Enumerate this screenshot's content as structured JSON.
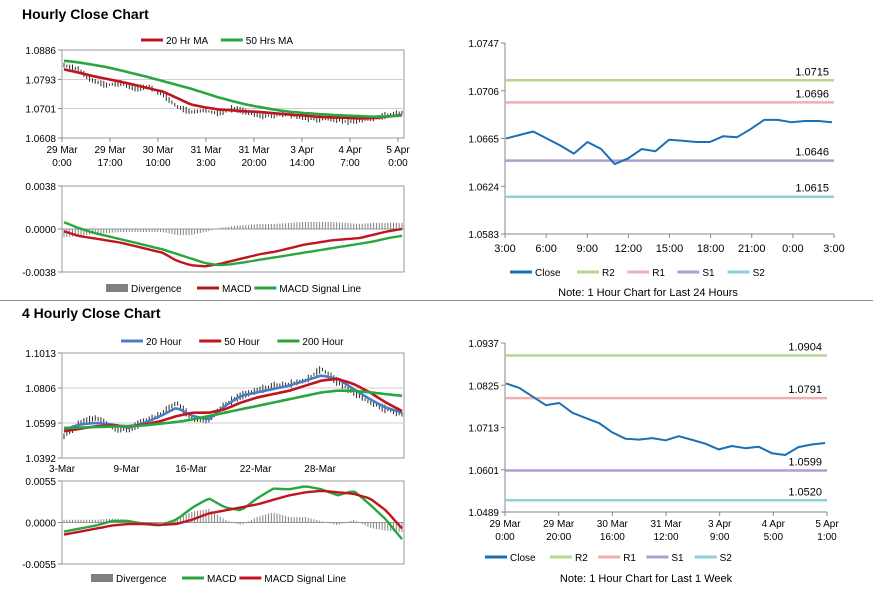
{
  "sections": [
    {
      "title": "Hourly Close Chart"
    },
    {
      "title": "4 Hourly Close Chart"
    }
  ],
  "chart_data": [
    {
      "type": "line",
      "panel": "hourly-price",
      "legend": [
        "20 Hr MA",
        "50 Hrs MA"
      ],
      "legend_position": "top",
      "colors": {
        "20 Hr MA": "#c0141e",
        "50 Hrs MA": "#2aa640",
        "price": "#2b2b2b"
      },
      "x_ticks": [
        "29 Mar|0:00",
        "29 Mar|17:00",
        "30 Mar|10:00",
        "31 Mar|3:00",
        "31 Mar|20:00",
        "3 Apr|14:00",
        "4 Apr|7:00",
        "5 Apr|0:00"
      ],
      "y_ticks": [
        "1.0886",
        "1.0793",
        "1.0701",
        "1.0608"
      ],
      "ylim": [
        1.0608,
        1.0886
      ],
      "grid": true,
      "series": [
        {
          "name": "20 Hr MA",
          "values": [
            1.0825,
            1.0815,
            1.0804,
            1.0795,
            1.0786,
            1.0776,
            1.0765,
            1.0755,
            1.0735,
            1.0714,
            1.0705,
            1.0698,
            1.0695,
            1.0692,
            1.069,
            1.0686,
            1.0682,
            1.0679,
            1.0675,
            1.0673,
            1.0672,
            1.067,
            1.0671,
            1.0676,
            1.0681
          ]
        },
        {
          "name": "50 Hrs MA",
          "values": [
            1.0852,
            1.0847,
            1.084,
            1.0832,
            1.0822,
            1.0811,
            1.08,
            1.0788,
            1.0776,
            1.0764,
            1.075,
            1.0736,
            1.0724,
            1.0713,
            1.0705,
            1.0697,
            1.0691,
            1.0687,
            1.0684,
            1.0681,
            1.0679,
            1.0677,
            1.0675,
            1.0676,
            1.0679
          ]
        },
        {
          "name": "Close",
          "values": [
            1.0838,
            1.0825,
            1.079,
            1.0775,
            1.0782,
            1.0765,
            1.077,
            1.0745,
            1.0708,
            1.069,
            1.0695,
            1.0685,
            1.0702,
            1.069,
            1.0678,
            1.068,
            1.0683,
            1.067,
            1.0667,
            1.0671,
            1.066,
            1.0664,
            1.0668,
            1.0682,
            1.0688
          ]
        }
      ]
    },
    {
      "type": "bar",
      "panel": "hourly-macd",
      "legend": [
        "Divergence",
        "MACD",
        "MACD Signal Line"
      ],
      "legend_position": "bottom",
      "colors": {
        "Divergence": "#808080",
        "MACD": "#c0141e",
        "MACD Signal Line": "#2aa640"
      },
      "y_ticks": [
        "0.0038",
        "0.0000",
        "-0.0038"
      ],
      "ylim": [
        -0.0038,
        0.0038
      ],
      "series": [
        {
          "name": "MACD",
          "values": [
            -0.0002,
            -0.0006,
            -0.0008,
            -0.001,
            -0.0012,
            -0.0015,
            -0.0018,
            -0.0021,
            -0.0028,
            -0.0032,
            -0.0033,
            -0.0031,
            -0.0028,
            -0.0025,
            -0.0022,
            -0.002,
            -0.0017,
            -0.0014,
            -0.0012,
            -0.001,
            -0.0009,
            -0.0008,
            -0.0005,
            -0.0002,
            0.0
          ]
        },
        {
          "name": "MACD Signal Line",
          "values": [
            0.0006,
            0.0001,
            -0.0003,
            -0.0006,
            -0.0009,
            -0.0012,
            -0.0015,
            -0.0018,
            -0.0022,
            -0.0026,
            -0.003,
            -0.0032,
            -0.0031,
            -0.0029,
            -0.0027,
            -0.0025,
            -0.0023,
            -0.0021,
            -0.0019,
            -0.0017,
            -0.0015,
            -0.0013,
            -0.0011,
            -0.0008,
            -0.0006
          ]
        }
      ]
    },
    {
      "type": "line",
      "panel": "hourly-levels",
      "legend": [
        "Close",
        "R2",
        "R1",
        "S1",
        "S2"
      ],
      "legend_position": "bottom",
      "note": "Note: 1 Hour Chart for Last 24 Hours",
      "colors": {
        "Close": "#1a6fb5",
        "R2": "#b7d68f",
        "R1": "#eeb1b1",
        "S1": "#b39ccf",
        "S2": "#8fd0dc"
      },
      "categories": [
        "3:00",
        "6:00",
        "9:00",
        "12:00",
        "15:00",
        "18:00",
        "21:00",
        "0:00",
        "3:00"
      ],
      "y_ticks": [
        "1.0747",
        "1.0706",
        "1.0665",
        "1.0624",
        "1.0583"
      ],
      "ylim": [
        1.0583,
        1.0747
      ],
      "levels": [
        {
          "name": "R2",
          "value": 1.0715,
          "label": "1.0715"
        },
        {
          "name": "R1",
          "value": 1.0696,
          "label": "1.0696"
        },
        {
          "name": "S1",
          "value": 1.0646,
          "label": "1.0646"
        },
        {
          "name": "S2",
          "value": 1.0615,
          "label": "1.0615"
        }
      ],
      "x": [
        0,
        1,
        2,
        3,
        4,
        5,
        6,
        7,
        8,
        9,
        10,
        11,
        12,
        13,
        14,
        15,
        16,
        17,
        18,
        19,
        20,
        21,
        22,
        23,
        24
      ],
      "series": [
        {
          "name": "Close",
          "values": [
            1.0665,
            1.0668,
            1.0671,
            1.0665,
            1.0659,
            1.0652,
            1.0662,
            1.0656,
            1.0643,
            1.0648,
            1.0656,
            1.0654,
            1.0664,
            1.0663,
            1.0662,
            1.0662,
            1.0667,
            1.0666,
            1.0673,
            1.0681,
            1.0681,
            1.0679,
            1.068,
            1.068,
            1.0679
          ]
        }
      ]
    },
    {
      "type": "line",
      "panel": "4hourly-price",
      "legend": [
        "20 Hour",
        "50 Hour",
        "200 Hour"
      ],
      "legend_position": "top",
      "colors": {
        "20 Hour": "#4b7dc4",
        "50 Hour": "#c0141e",
        "200 Hour": "#2aa640",
        "price": "#2b2b2b"
      },
      "x_ticks": [
        "3-Mar",
        "9-Mar",
        "16-Mar",
        "22-Mar",
        "28-Mar"
      ],
      "y_ticks": [
        "1.1013",
        "1.0806",
        "1.0599",
        "1.0392"
      ],
      "ylim": [
        1.0392,
        1.1013
      ],
      "grid": true,
      "series": [
        {
          "name": "20 Hour",
          "values": [
            1.056,
            1.059,
            1.06,
            1.059,
            1.057,
            1.06,
            1.064,
            1.069,
            1.064,
            1.062,
            1.07,
            1.076,
            1.078,
            1.08,
            1.082,
            1.085,
            1.088,
            1.086,
            1.08,
            1.074,
            1.069,
            1.066
          ]
        },
        {
          "name": "50 Hour",
          "values": [
            1.055,
            1.0565,
            1.058,
            1.0585,
            1.058,
            1.059,
            1.061,
            1.064,
            1.066,
            1.066,
            1.068,
            1.072,
            1.075,
            1.077,
            1.079,
            1.082,
            1.085,
            1.086,
            1.083,
            1.078,
            1.072,
            1.067
          ]
        },
        {
          "name": "200 Hour",
          "values": [
            1.057,
            1.0572,
            1.0575,
            1.0578,
            1.058,
            1.0585,
            1.0595,
            1.0605,
            1.062,
            1.064,
            1.066,
            1.068,
            1.07,
            1.072,
            1.074,
            1.076,
            1.078,
            1.079,
            1.079,
            1.078,
            1.077,
            1.076
          ]
        },
        {
          "name": "Close",
          "values": [
            1.052,
            1.06,
            1.063,
            1.057,
            1.056,
            1.061,
            1.065,
            1.072,
            1.062,
            1.061,
            1.071,
            1.076,
            1.079,
            1.082,
            1.083,
            1.085,
            1.092,
            1.084,
            1.078,
            1.072,
            1.068,
            1.065
          ]
        }
      ]
    },
    {
      "type": "bar",
      "panel": "4hourly-macd",
      "legend": [
        "Divergence",
        "MACD",
        "MACD Signal Line"
      ],
      "legend_position": "bottom",
      "colors": {
        "Divergence": "#808080",
        "MACD": "#2aa640",
        "MACD Signal Line": "#c0141e"
      },
      "y_ticks": [
        "0.0055",
        "0.0000",
        "-0.0055"
      ],
      "ylim": [
        -0.0055,
        0.0055
      ],
      "series": [
        {
          "name": "MACD",
          "values": [
            -0.0012,
            -0.0008,
            -0.0004,
            0.0002,
            0.0002,
            -0.0002,
            -0.0004,
            0.0004,
            0.002,
            0.0032,
            0.002,
            0.0016,
            0.0032,
            0.0045,
            0.0044,
            0.0048,
            0.0044,
            0.0036,
            0.0042,
            0.0024,
            0.0004,
            -0.0022
          ]
        },
        {
          "name": "MACD Signal Line",
          "values": [
            -0.0016,
            -0.0012,
            -0.0008,
            -0.0004,
            -0.0002,
            -0.0002,
            -0.0003,
            -0.0002,
            0.0004,
            0.0012,
            0.0016,
            0.002,
            0.0024,
            0.003,
            0.0036,
            0.004,
            0.0042,
            0.004,
            0.0038,
            0.0032,
            0.0016,
            -0.0008
          ]
        }
      ]
    },
    {
      "type": "line",
      "panel": "4hourly-levels",
      "legend": [
        "Close",
        "R2",
        "R1",
        "S1",
        "S2"
      ],
      "legend_position": "bottom",
      "note": "Note: 1 Hour Chart for Last 1 Week",
      "colors": {
        "Close": "#1a6fb5",
        "R2": "#b7d68f",
        "R1": "#eeb1b1",
        "S1": "#b39ccf",
        "S2": "#8fd0dc"
      },
      "x_ticks": [
        "29 Mar|0:00",
        "29 Mar|20:00",
        "30 Mar|16:00",
        "31 Mar|12:00",
        "3 Apr|9:00",
        "4 Apr|5:00",
        "5 Apr|1:00"
      ],
      "y_ticks": [
        "1.0937",
        "1.0825",
        "1.0713",
        "1.0601",
        "1.0489"
      ],
      "ylim": [
        1.0489,
        1.0937
      ],
      "levels": [
        {
          "name": "R2",
          "value": 1.0904,
          "label": "1.0904"
        },
        {
          "name": "R1",
          "value": 1.0791,
          "label": "1.0791"
        },
        {
          "name": "S1",
          "value": 1.0599,
          "label": "1.0599"
        },
        {
          "name": "S2",
          "value": 1.052,
          "label": "1.0520"
        }
      ],
      "series": [
        {
          "name": "Close",
          "values": [
            1.083,
            1.0818,
            1.0795,
            1.0772,
            1.0778,
            1.0752,
            1.0738,
            1.0725,
            1.07,
            1.0683,
            1.0681,
            1.0685,
            1.0679,
            1.069,
            1.068,
            1.067,
            1.0655,
            1.0664,
            1.0658,
            1.0662,
            1.0645,
            1.064,
            1.0661,
            1.0668,
            1.0672
          ]
        }
      ]
    }
  ]
}
